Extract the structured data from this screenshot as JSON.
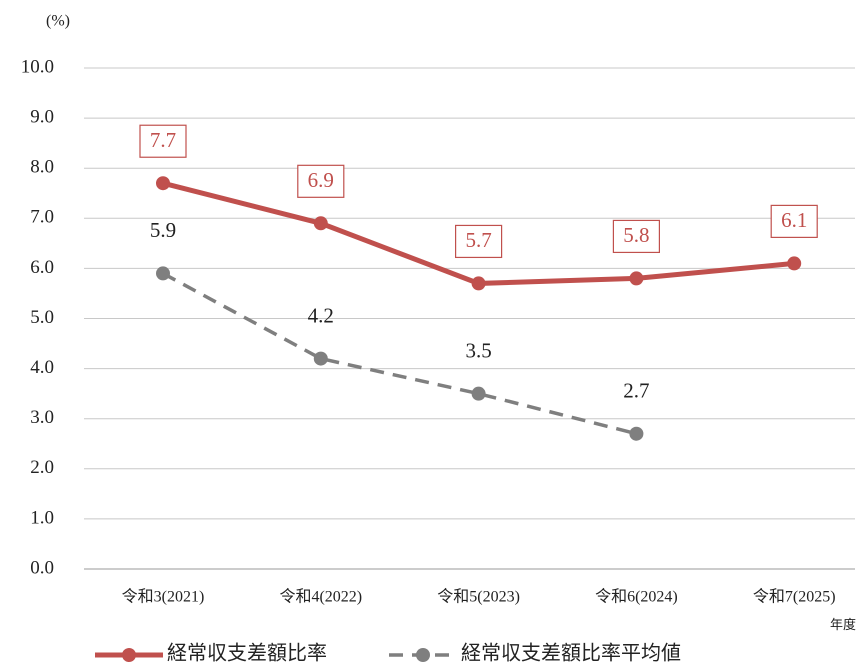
{
  "chart_data": {
    "type": "line",
    "y_label": "(%)",
    "x_label": "年度",
    "categories": [
      "令和3(2021)",
      "令和4(2022)",
      "令和5(2023)",
      "令和6(2024)",
      "令和7(2025)"
    ],
    "series": [
      {
        "name": "経常収支差額比率",
        "color": "#c0504d",
        "values": [
          7.7,
          6.9,
          5.7,
          5.8,
          6.1
        ],
        "dashed": false,
        "boxed_labels": true
      },
      {
        "name": "経常収支差額比率平均値",
        "color": "#7f7f7f",
        "values": [
          5.9,
          4.2,
          3.5,
          2.7,
          null
        ],
        "dashed": true,
        "boxed_labels": false
      }
    ],
    "ylim": [
      0,
      10
    ],
    "yticks": [
      {
        "value": 0,
        "label": "0.0"
      },
      {
        "value": 1,
        "label": "1.0"
      },
      {
        "value": 2,
        "label": "2.0"
      },
      {
        "value": 3,
        "label": "3.0"
      },
      {
        "value": 4,
        "label": "4.0"
      },
      {
        "value": 5,
        "label": "5.0"
      },
      {
        "value": 6,
        "label": "6.0"
      },
      {
        "value": 7,
        "label": "7.0"
      },
      {
        "value": 8,
        "label": "8.0"
      },
      {
        "value": 9,
        "label": "9.0"
      },
      {
        "value": 10,
        "label": "10.0"
      }
    ],
    "grid": true,
    "legend": "bottom"
  }
}
